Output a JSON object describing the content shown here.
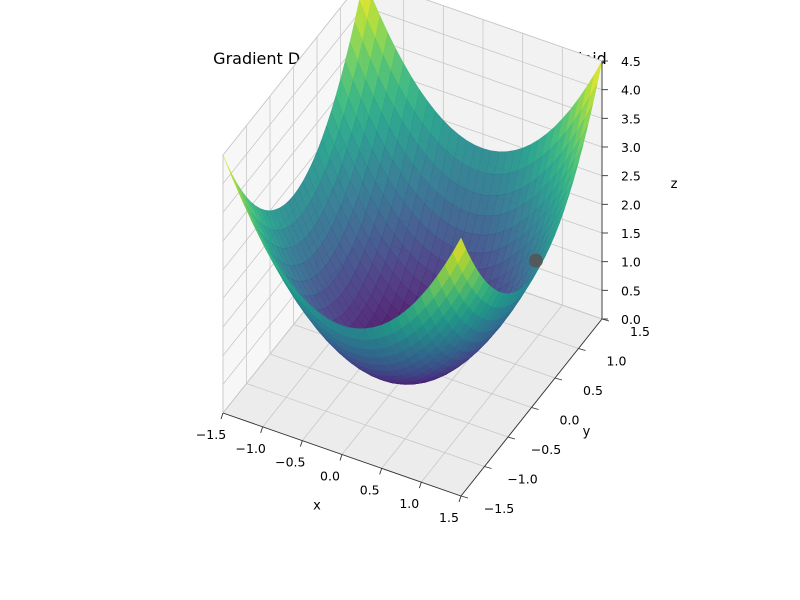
{
  "chart_data": {
    "type": "surface3d",
    "title": "Gradient Descent: Rolling Ball Down a Paraboloid",
    "xlabel": "x",
    "ylabel": "y",
    "zlabel": "z",
    "function": "z = x^2 + y^2",
    "xlim": [
      -1.5,
      1.5
    ],
    "ylim": [
      -1.5,
      1.5
    ],
    "zlim": [
      0,
      4.5
    ],
    "x_ticks": [
      "−1.5",
      "−1.0",
      "−0.5",
      "0.0",
      "0.5",
      "1.0",
      "1.5"
    ],
    "y_ticks": [
      "−1.5",
      "−1.0",
      "−0.5",
      "0.0",
      "0.5",
      "1.0",
      "1.5"
    ],
    "z_ticks": [
      "0.0",
      "0.5",
      "1.0",
      "1.5",
      "2.0",
      "2.5",
      "3.0",
      "3.5",
      "4.0",
      "4.5"
    ],
    "grid": true,
    "colormap": "viridis",
    "ball": {
      "x": 1.2,
      "y": 0.6,
      "z": 1.8,
      "color": "#555555"
    }
  }
}
